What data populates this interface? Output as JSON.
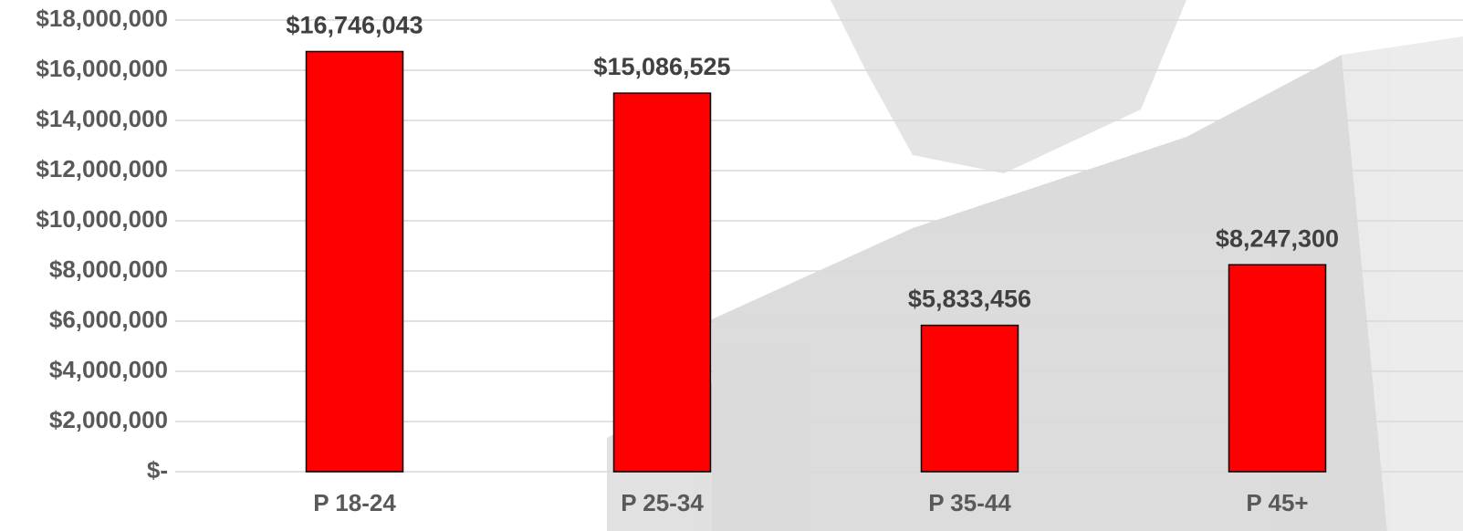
{
  "chart_data": {
    "type": "bar",
    "categories": [
      "P 18-24",
      "P 25-34",
      "P 35-44",
      "P 45+"
    ],
    "values": [
      16746043,
      15086525,
      5833456,
      8247300
    ],
    "value_labels": [
      "$16,746,043",
      "$15,086,525",
      "$5,833,456",
      "$8,247,300"
    ],
    "color": "#ff0000",
    "ylim": [
      0,
      18000000
    ],
    "yticks": [
      {
        "value": 0,
        "label": "$-"
      },
      {
        "value": 2000000,
        "label": "$2,000,000"
      },
      {
        "value": 4000000,
        "label": "$4,000,000"
      },
      {
        "value": 6000000,
        "label": "$6,000,000"
      },
      {
        "value": 8000000,
        "label": "$8,000,000"
      },
      {
        "value": 10000000,
        "label": "$10,000,000"
      },
      {
        "value": 12000000,
        "label": "$12,000,000"
      },
      {
        "value": 14000000,
        "label": "$14,000,000"
      },
      {
        "value": 16000000,
        "label": "$16,000,000"
      },
      {
        "value": 18000000,
        "label": "$18,000,000"
      }
    ],
    "grid": true
  }
}
